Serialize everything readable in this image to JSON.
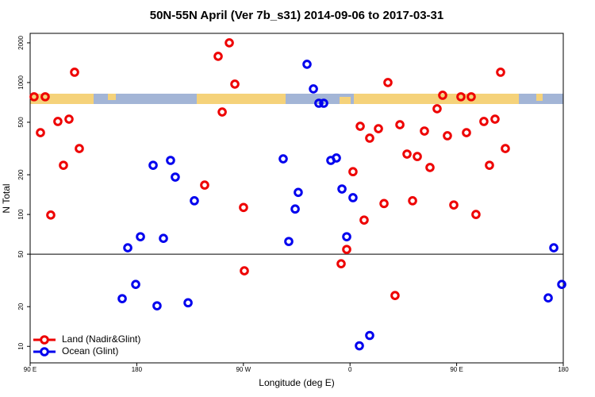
{
  "chart_data": {
    "type": "scatter",
    "title": "50N-55N April (Ver 7b_s31)   2014-09-06 to 2017-03-31",
    "x_label": "Longitude (deg E)",
    "y_label": "N Total",
    "log_y": true,
    "xlim": [
      90,
      540
    ],
    "ylim": [
      7.5,
      2360
    ],
    "xticks": [
      {
        "value": 90,
        "label": "90 E"
      },
      180,
      {
        "value": 270,
        "label": "90 W"
      },
      {
        "value": 360,
        "label": "0"
      },
      {
        "value": 450,
        "label": "90 E"
      },
      {
        "value": 540,
        "label": "180"
      }
    ],
    "yticks": [
      10,
      20,
      50,
      100,
      200,
      500,
      1000,
      2000
    ],
    "hline": 50,
    "legend": "bottom-left",
    "series": [
      {
        "name": "Land (Nadir&Glint)",
        "color": "#ee0000",
        "x": [
          93.3,
          98.7,
          102.7,
          107.4,
          113.4,
          118.1,
          122.8,
          127.5,
          131.5,
          237.3,
          248.7,
          252.1,
          258.1,
          262.8,
          270.1,
          270.8,
          352.5,
          357.2,
          362.5,
          368.6,
          371.9,
          376.6,
          384.0,
          388.7,
          392.0,
          398.0,
          402.1,
          408.1,
          412.8,
          416.8,
          422.8,
          427.5,
          433.5,
          438.2,
          442.2,
          447.6,
          453.6,
          458.3,
          462.3,
          466.3,
          473.0,
          477.7,
          482.4,
          487.1,
          491.1
        ],
        "values": [
          780,
          417,
          780,
          99,
          507,
          236,
          528,
          1197,
          316,
          167,
          1580,
          598,
          2000,
          973,
          113,
          37.4,
          42.3,
          54.3,
          211,
          466,
          90.7,
          379,
          447,
          121,
          1000,
          24.3,
          479,
          287,
          127,
          275,
          429,
          227,
          633,
          801,
          395,
          118,
          780,
          417,
          780,
          100,
          507,
          236,
          528,
          1197,
          316
        ]
      },
      {
        "name": "Ocean (Glint)",
        "color": "#0000ee",
        "x": [
          167.7,
          172.4,
          179.1,
          183.1,
          193.8,
          197.1,
          202.5,
          208.5,
          212.5,
          223.3,
          228.6,
          303.6,
          308.3,
          313.7,
          316.3,
          323.7,
          329.1,
          333.7,
          337.8,
          343.8,
          348.5,
          353.2,
          357.2,
          362.5,
          367.9,
          376.6,
          527.3,
          532.0,
          538.7
        ],
        "values": [
          23.0,
          55.9,
          29.5,
          67.8,
          236,
          20.3,
          65.9,
          257,
          192,
          21.4,
          127,
          264,
          62.4,
          110,
          147,
          1376,
          895,
          697,
          697,
          257,
          268,
          156,
          67.8,
          134,
          10.1,
          12.1,
          23.3,
          55.9,
          29.5
        ]
      }
    ]
  }
}
